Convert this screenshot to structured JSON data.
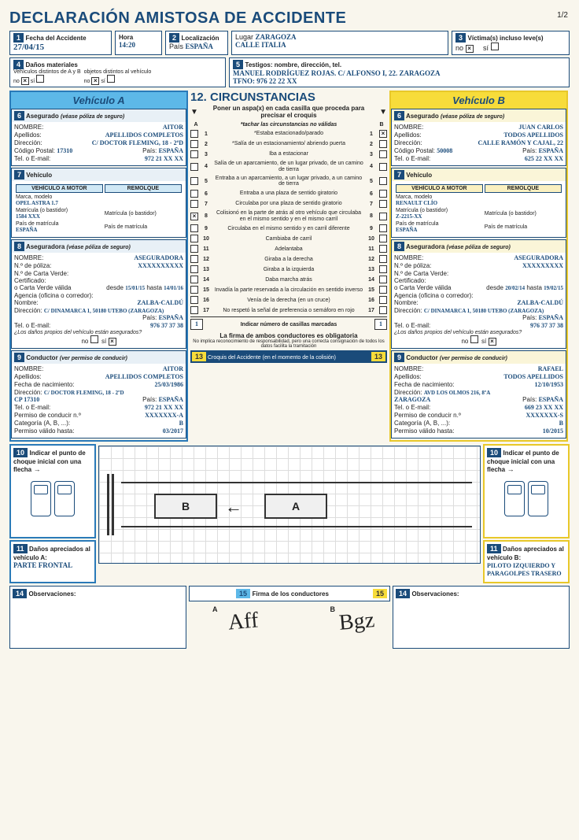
{
  "title": "DECLARACIÓN AMISTOSA DE ACCIDENTE",
  "page": "1/2",
  "top": {
    "s1": {
      "num": "1",
      "label": "Fecha del Accidente",
      "value": "27/04/15",
      "hora_label": "Hora",
      "hora": "14:20"
    },
    "s2": {
      "num": "2",
      "label": "Localización",
      "lugar_label": "Lugar",
      "lugar": "ZARAGOZA",
      "pais_label": "País",
      "pais": "ESPAÑA",
      "calle": "CALLE ITALIA"
    },
    "s3": {
      "num": "3",
      "label": "Víctima(s) incluso leve(s)",
      "no": "no",
      "si": "sí",
      "no_checked": true,
      "si_checked": false
    },
    "s4": {
      "num": "4",
      "label": "Daños materiales",
      "sub1": "Vehículos distintos de A y B",
      "sub2": "objetos distintos al vehículo",
      "no": "no",
      "si": "sí"
    },
    "s5": {
      "num": "5",
      "label": "Testigos: nombre, dirección, tel.",
      "line1": "MANUEL RODRÍGUEZ ROJAS. C/ ALFONSO I, 22. ZARAGOZA",
      "line2": "TFNO: 976 22 22 XX"
    }
  },
  "circunstancias": {
    "num": "12.",
    "title": "CIRCUNSTANCIAS",
    "instr": "Poner un aspa(x) en cada casilla que proceda para precisar el croquis",
    "instr2": "*tachar las circunstancias no válidas",
    "colA": "A",
    "colB": "B",
    "items": [
      {
        "n": "1",
        "t": "*Estaba estacionado/parado",
        "a": false,
        "b": true
      },
      {
        "n": "2",
        "t": "*Salía de un estacionamiento/ abriendo puerta",
        "a": false,
        "b": false
      },
      {
        "n": "3",
        "t": "Iba a estacionar",
        "a": false,
        "b": false
      },
      {
        "n": "4",
        "t": "Salía de un aparcamiento, de un lugar privado, de un camino de tierra",
        "a": false,
        "b": false
      },
      {
        "n": "5",
        "t": "Entraba a un aparcamiento, a un lugar privado, a un camino de tierra",
        "a": false,
        "b": false
      },
      {
        "n": "6",
        "t": "Entraba a una plaza de sentido giratorio",
        "a": false,
        "b": false
      },
      {
        "n": "7",
        "t": "Circulaba por una plaza de sentido giratorio",
        "a": false,
        "b": false
      },
      {
        "n": "8",
        "t": "Colisionó en la parte de atrás al otro vehículo que circulaba en el mismo sentido y en el mismo carril",
        "a": true,
        "b": false
      },
      {
        "n": "9",
        "t": "Circulaba en el mismo sentido y en carril diferente",
        "a": false,
        "b": false
      },
      {
        "n": "10",
        "t": "Cambiaba de carril",
        "a": false,
        "b": false
      },
      {
        "n": "11",
        "t": "Adelantaba",
        "a": false,
        "b": false
      },
      {
        "n": "12",
        "t": "Giraba a la derecha",
        "a": false,
        "b": false
      },
      {
        "n": "13",
        "t": "Giraba a la izquierda",
        "a": false,
        "b": false
      },
      {
        "n": "14",
        "t": "Daba marcha atrás",
        "a": false,
        "b": false
      },
      {
        "n": "15",
        "t": "Invadía la parte reservada a la circulación en sentido inverso",
        "a": false,
        "b": false
      },
      {
        "n": "16",
        "t": "Venía de la derecha (en un cruce)",
        "a": false,
        "b": false
      },
      {
        "n": "17",
        "t": "No respetó la señal de preferencia o semáforo en rojo",
        "a": false,
        "b": false
      }
    ],
    "count_label": "Indicar número de casillas marcadas",
    "count_a": "1",
    "count_b": "1",
    "firma_oblig": "La firma de ambos conductores es obligatoria",
    "firma_note": "No implica reconocimiento de responsabilidad, pero una correcta consignación de todos los datos facilita la tramitación",
    "s13": {
      "num": "13",
      "label": "Croquis del Accidente (en el momento de la colisión)"
    }
  },
  "vehA": {
    "title": "Vehículo A",
    "s6": {
      "num": "6",
      "label": "Asegurado",
      "note": "(véase póliza de seguro)",
      "nombre_l": "NOMBRE:",
      "nombre": "AITOR",
      "apellidos_l": "Apellidos:",
      "apellidos": "APELLIDOS COMPLETOS",
      "dir_l": "Dirección:",
      "dir": "C/ DOCTOR FLEMING, 18 - 2ºD",
      "cp_l": "Código Postal:",
      "cp": "17310",
      "pais_l": "País:",
      "pais": "ESPAÑA",
      "tel_l": "Tel. o E-mail:",
      "tel": "972 21 XX XX"
    },
    "s7": {
      "num": "7",
      "label": "Vehículo",
      "motor": "VEHÍCULO A MOTOR",
      "remolque": "REMOLQUE",
      "marca_l": "Marca, modelo",
      "marca": "OPEL ASTRA 1.7",
      "mat_l": "Matrícula (o bastidor)",
      "mat": "1584 XXX",
      "pmat_l": "País de matrícula",
      "pmat": "ESPAÑA",
      "mat2_l": "Matrícula (o bastidor)",
      "pmat2_l": "País de matrícula"
    },
    "s8": {
      "num": "8",
      "label": "Aseguradora",
      "note": "(véase póliza de seguro)",
      "nombre_l": "NOMBRE:",
      "nombre": "ASEGURADORA",
      "pol_l": "N.º de póliza:",
      "pol": "XXXXXXXXXX",
      "cv_l": "N.º de Carta Verde:",
      "cert_l": "Certificado:",
      "ocv_l": "o Carta Verde válida",
      "desde_l": "desde",
      "desde": "15/01/15",
      "hasta_l": "hasta",
      "hasta": "14/01/16",
      "agencia_l": "Agencia (oficina o corredor):",
      "ag_nombre_l": "Nombre:",
      "ag_nombre": "ZALBA-CALDÚ",
      "ag_dir_l": "Dirección:",
      "ag_dir": "C/ DINAMARCA 1, 50180 UTEBO (ZARAGOZA)",
      "ag_pais_l": "País:",
      "ag_pais": "ESPAÑA",
      "ag_tel_l": "Tel. o E-mail:",
      "ag_tel": "976 37 37 38",
      "danos_l": "¿Los daños propios del vehículo están asegurados?",
      "no": "no",
      "si": "sí",
      "si_checked": true
    },
    "s9": {
      "num": "9",
      "label": "Conductor",
      "note": "(ver permiso de conducir)",
      "nombre_l": "NOMBRE:",
      "nombre": "AITOR",
      "apellidos_l": "Apellidos:",
      "apellidos": "APELLIDOS COMPLETOS",
      "fnac_l": "Fecha de nacimiento:",
      "fnac": "25/03/1986",
      "dir_l": "Dirección:",
      "dir": "C/ DOCTOR FLEMING, 18 - 2ºD",
      "cp": "CP 17310",
      "pais_l": "País:",
      "pais": "ESPAÑA",
      "tel_l": "Tel. o E-mail:",
      "tel": "972 21 XX XX",
      "perm_l": "Permiso de conducir n.º",
      "perm": "XXXXXXX-A",
      "cat_l": "Categoría (A, B, ...):",
      "cat": "B",
      "valid_l": "Permiso válido hasta:",
      "valid": "03/2017"
    },
    "s10": {
      "num": "10",
      "label": "Indicar el punto de choque inicial con una flecha"
    },
    "s11": {
      "num": "11",
      "label": "Daños apreciados al vehículo A:",
      "text": "PARTE FRONTAL"
    },
    "s14": {
      "num": "14",
      "label": "Observaciones:"
    }
  },
  "vehB": {
    "title": "Vehículo B",
    "s6": {
      "num": "6",
      "label": "Asegurado",
      "note": "(véase póliza de seguro)",
      "nombre_l": "NOMBRE:",
      "nombre": "JUAN CARLOS",
      "apellidos_l": "Apellidos:",
      "apellidos": "TODOS APELLIDOS",
      "dir_l": "Dirección:",
      "dir": "CALLE RAMÓN Y CAJAL, 22",
      "cp_l": "Código Postal:",
      "cp": "50008",
      "pais_l": "País:",
      "pais": "ESPAÑA",
      "tel_l": "Tel. o E-mail:",
      "tel": "625 22 XX XX"
    },
    "s7": {
      "num": "7",
      "label": "Vehículo",
      "motor": "VEHÍCULO A MOTOR",
      "remolque": "REMOLQUE",
      "marca_l": "Marca, modelo",
      "marca": "RENAULT CLÍO",
      "mat_l": "Matrícula (o bastidor)",
      "mat": "Z-2215-XX",
      "pmat_l": "País de matrícula",
      "pmat": "ESPAÑA",
      "mat2_l": "Matrícula (o bastidor)",
      "pmat2_l": "País de matrícula"
    },
    "s8": {
      "num": "8",
      "label": "Aseguradora",
      "note": "(véase póliza de seguro)",
      "nombre_l": "NOMBRE:",
      "nombre": "ASEGURADORA",
      "pol_l": "N.º de póliza:",
      "pol": "XXXXXXXXX",
      "cv_l": "N.º de Carta Verde:",
      "cert_l": "Certificado:",
      "ocv_l": "o Carta Verde válida",
      "desde_l": "desde",
      "desde": "20/02/14",
      "hasta_l": "hasta",
      "hasta": "19/02/15",
      "agencia_l": "Agencia (oficina o corredor):",
      "ag_nombre_l": "Nombre:",
      "ag_nombre": "ZALBA-CALDÚ",
      "ag_dir_l": "Dirección:",
      "ag_dir": "C/ DINAMARCA 1, 50180 UTEBO (ZARAGOZA)",
      "ag_pais_l": "País:",
      "ag_pais": "ESPAÑA",
      "ag_tel_l": "Tel. o E-mail:",
      "ag_tel": "976 37 37 38",
      "danos_l": "¿Los daños propios del vehículo están asegurados?",
      "no": "no",
      "si": "sí",
      "si_checked": true
    },
    "s9": {
      "num": "9",
      "label": "Conductor",
      "note": "(ver permiso de conducir)",
      "nombre_l": "NOMBRE:",
      "nombre": "RAFAEL",
      "apellidos_l": "Apellidos:",
      "apellidos": "TODOS APELLIDOS",
      "fnac_l": "Fecha de nacimiento:",
      "fnac": "12/10/1953",
      "dir_l": "Dirección:",
      "dir": "AVD LOS OLMOS 216, 8ºA",
      "cp": "ZARAGOZA",
      "pais_l": "País:",
      "pais": "ESPAÑA",
      "tel_l": "Tel. o E-mail:",
      "tel": "669 23 XX XX",
      "perm_l": "Permiso de conducir n.º",
      "perm": "XXXXXXX-S",
      "cat_l": "Categoría (A, B, ...):",
      "cat": "B",
      "valid_l": "Permiso válido hasta:",
      "valid": "10/2015"
    },
    "s10": {
      "num": "10",
      "label": "Indicar el punto de choque inicial con una flecha"
    },
    "s11": {
      "num": "11",
      "label": "Daños apreciados al vehículo B:",
      "text": "PILOTO IZQUIERDO Y PARAGOLPES TRASERO"
    },
    "s14": {
      "num": "14",
      "label": "Observaciones:"
    }
  },
  "signatures": {
    "num": "15",
    "label": "Firma de los conductores",
    "a": "A",
    "b": "B"
  }
}
